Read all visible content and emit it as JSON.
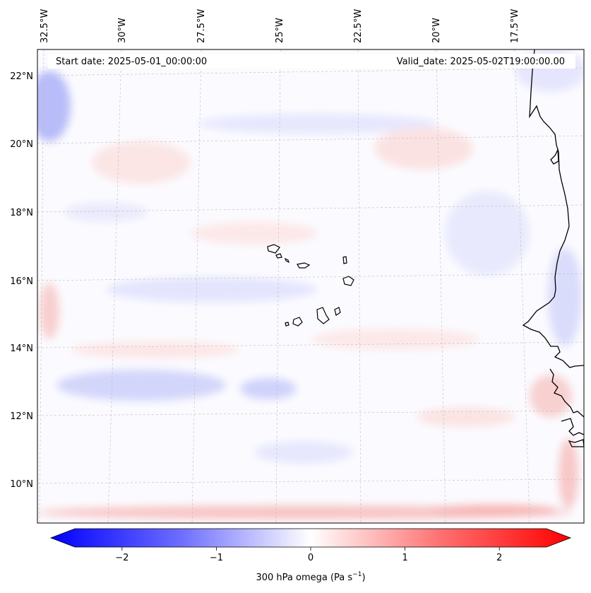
{
  "map": {
    "top_axis_labels": [
      "32.5°W",
      "30°W",
      "27.5°W",
      "25°W",
      "22.5°W",
      "20°W",
      "17.5°W"
    ],
    "left_axis_labels": [
      "22°N",
      "20°N",
      "18°N",
      "16°N",
      "14°N",
      "12°N",
      "10°N"
    ],
    "start_date": "Start date: 2025-05-01_00:00:00",
    "valid_date": "Valid_date: 2025-05-02T19:00:00.00"
  },
  "colorbar": {
    "ticks": [
      "−2",
      "−1",
      "0",
      "1",
      "2"
    ],
    "tick_values": [
      -2,
      -1,
      0,
      1,
      2
    ],
    "range": [
      -2.5,
      2.5
    ],
    "label_prefix": "300 hPa omega (Pa s",
    "label_exponent": "−1",
    "label_suffix": ")",
    "colors": {
      "negative": "#0000ff",
      "zero": "#ffffff",
      "positive": "#ff0000"
    }
  }
}
